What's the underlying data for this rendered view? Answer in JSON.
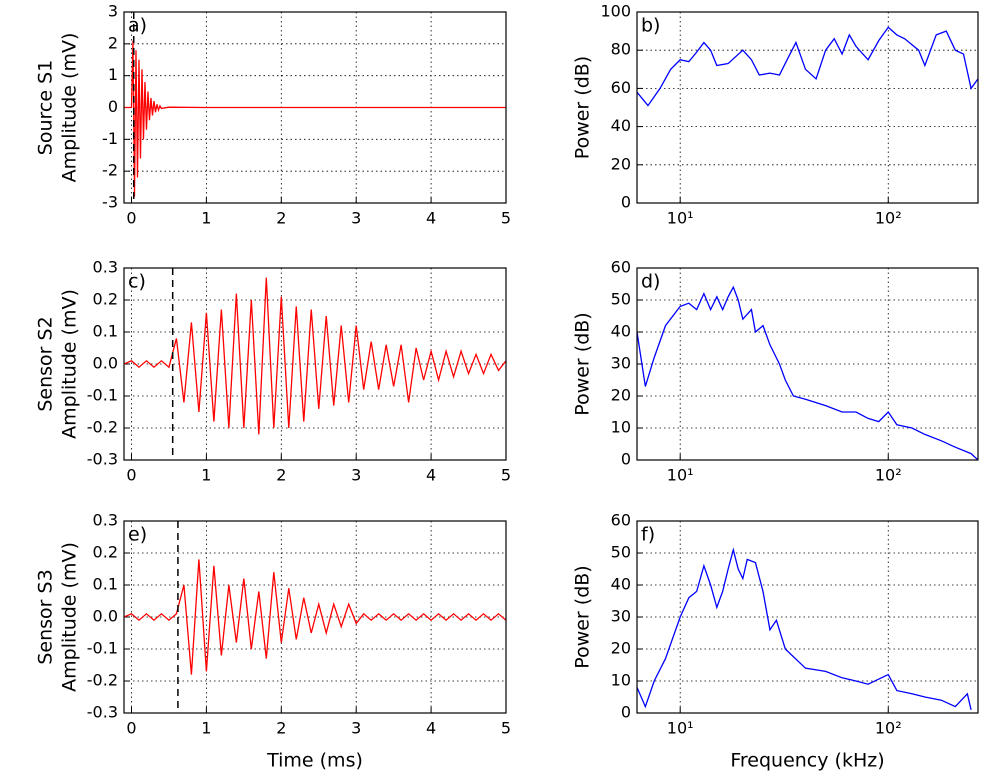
{
  "chart_data": [
    {
      "type": "line",
      "label": "a)",
      "ylabel": [
        "Source S1",
        "Amplitude (mV)"
      ],
      "xlim": [
        -0.1,
        5
      ],
      "ylim": [
        -3,
        3
      ],
      "xticks": [
        0,
        1,
        2,
        3,
        4,
        5
      ],
      "yticks": [
        -3,
        -2,
        -1,
        0,
        1,
        2,
        3
      ],
      "grid": true,
      "vline": 0.03,
      "x": [
        -0.1,
        0,
        0.02,
        0.04,
        0.06,
        0.08,
        0.1,
        0.12,
        0.14,
        0.16,
        0.18,
        0.2,
        0.22,
        0.24,
        0.26,
        0.28,
        0.3,
        0.32,
        0.34,
        0.36,
        0.38,
        0.4,
        0.5,
        1,
        1.5,
        2,
        2.5,
        3,
        3.5,
        4,
        4.5,
        5
      ],
      "series": [
        {
          "color": "#ff0000",
          "values": [
            0,
            0,
            2.1,
            -2.8,
            1.8,
            -2.2,
            1.5,
            -1.6,
            1.2,
            -1.0,
            0.8,
            -0.7,
            0.5,
            -0.4,
            0.3,
            -0.25,
            0.2,
            -0.15,
            0.1,
            -0.08,
            0.05,
            -0.03,
            0.01,
            0,
            0,
            0,
            0,
            0,
            0,
            0,
            0,
            0
          ]
        }
      ]
    },
    {
      "type": "line",
      "label": "b)",
      "ylabel": [
        "Power (dB)"
      ],
      "xscale": "log",
      "xlim": [
        6.2,
        270
      ],
      "ylim": [
        0,
        100
      ],
      "xticks": [
        {
          "value": 10,
          "label": "10¹"
        },
        {
          "value": 100,
          "label": "10²"
        }
      ],
      "yticks": [
        0,
        20,
        40,
        60,
        80,
        100
      ],
      "grid": true,
      "x": [
        6.2,
        7,
        8,
        9,
        10,
        11,
        12,
        13,
        14,
        15,
        17,
        20,
        22,
        24,
        27,
        30,
        33,
        36,
        40,
        45,
        50,
        55,
        60,
        65,
        70,
        80,
        90,
        100,
        110,
        120,
        140,
        150,
        170,
        190,
        210,
        230,
        250,
        270
      ],
      "series": [
        {
          "color": "#0000ff",
          "values": [
            58,
            51,
            60,
            70,
            75,
            74,
            79,
            84,
            80,
            72,
            73,
            80,
            75,
            67,
            68,
            67,
            76,
            84,
            70,
            65,
            80,
            86,
            78,
            88,
            82,
            75,
            85,
            92,
            88,
            86,
            80,
            72,
            88,
            90,
            80,
            78,
            60,
            65
          ]
        }
      ]
    },
    {
      "type": "line",
      "label": "c)",
      "ylabel": [
        "Sensor S2",
        "Amplitude (mV)"
      ],
      "xlim": [
        -0.1,
        5
      ],
      "ylim": [
        -0.3,
        0.3
      ],
      "xticks": [
        0,
        1,
        2,
        3,
        4,
        5
      ],
      "yticks": [
        -0.3,
        -0.2,
        -0.1,
        {
          "value": 0,
          "label": "0.0"
        },
        0.1,
        0.2,
        0.3
      ],
      "grid": true,
      "vline": 0.55,
      "x": [
        -0.1,
        0,
        0.1,
        0.2,
        0.3,
        0.4,
        0.5,
        0.6,
        0.7,
        0.8,
        0.9,
        1.0,
        1.1,
        1.2,
        1.3,
        1.4,
        1.5,
        1.6,
        1.7,
        1.8,
        1.9,
        2.0,
        2.1,
        2.2,
        2.3,
        2.4,
        2.5,
        2.6,
        2.7,
        2.8,
        2.9,
        3.0,
        3.1,
        3.2,
        3.3,
        3.4,
        3.5,
        3.6,
        3.7,
        3.8,
        3.9,
        4.0,
        4.1,
        4.2,
        4.3,
        4.4,
        4.5,
        4.6,
        4.7,
        4.8,
        4.9,
        5.0
      ],
      "series": [
        {
          "color": "#ff0000",
          "values": [
            0,
            0.01,
            -0.01,
            0.01,
            -0.01,
            0.01,
            -0.01,
            0.08,
            -0.12,
            0.13,
            -0.15,
            0.16,
            -0.18,
            0.17,
            -0.2,
            0.22,
            -0.2,
            0.2,
            -0.22,
            0.27,
            -0.2,
            0.21,
            -0.2,
            0.18,
            -0.18,
            0.17,
            -0.14,
            0.15,
            -0.13,
            0.12,
            -0.12,
            0.12,
            -0.08,
            0.07,
            -0.08,
            0.06,
            -0.07,
            0.06,
            -0.12,
            0.05,
            -0.05,
            0.04,
            -0.05,
            0.04,
            -0.04,
            0.04,
            -0.03,
            0.03,
            -0.03,
            0.03,
            -0.02,
            0.01
          ]
        }
      ]
    },
    {
      "type": "line",
      "label": "d)",
      "ylabel": [
        "Power (dB)"
      ],
      "xscale": "log",
      "xlim": [
        6.2,
        270
      ],
      "ylim": [
        0,
        60
      ],
      "xticks": [
        {
          "value": 10,
          "label": "10¹"
        },
        {
          "value": 100,
          "label": "10²"
        }
      ],
      "yticks": [
        0,
        10,
        20,
        30,
        40,
        50,
        60
      ],
      "grid": true,
      "x": [
        6.2,
        6.8,
        7.5,
        8.5,
        10,
        11,
        12,
        13,
        14,
        15,
        16,
        17,
        18,
        19,
        20,
        22,
        23,
        25,
        27,
        30,
        32,
        35,
        40,
        50,
        60,
        70,
        80,
        90,
        100,
        110,
        130,
        150,
        180,
        210,
        250,
        270
      ],
      "series": [
        {
          "color": "#0000ff",
          "values": [
            40,
            23,
            32,
            42,
            48,
            49,
            47,
            52,
            47,
            51,
            47,
            51,
            54,
            50,
            44,
            47,
            40,
            42,
            36,
            30,
            25,
            20,
            19,
            17,
            15,
            15,
            13,
            12,
            15,
            11,
            10,
            8,
            6,
            4,
            2,
            0
          ]
        }
      ]
    },
    {
      "type": "line",
      "label": "e)",
      "ylabel": [
        "Sensor S3",
        "Amplitude (mV)"
      ],
      "xlabel": "Time (ms)",
      "xlim": [
        -0.1,
        5
      ],
      "ylim": [
        -0.3,
        0.3
      ],
      "xticks": [
        0,
        1,
        2,
        3,
        4,
        5
      ],
      "yticks": [
        -0.3,
        -0.2,
        -0.1,
        {
          "value": 0,
          "label": "0.0"
        },
        0.1,
        0.2,
        0.3
      ],
      "grid": true,
      "vline": 0.62,
      "x": [
        -0.1,
        0,
        0.1,
        0.2,
        0.3,
        0.4,
        0.5,
        0.6,
        0.7,
        0.8,
        0.9,
        1.0,
        1.1,
        1.2,
        1.3,
        1.4,
        1.5,
        1.6,
        1.7,
        1.8,
        1.9,
        2.0,
        2.1,
        2.2,
        2.3,
        2.4,
        2.5,
        2.6,
        2.7,
        2.8,
        2.9,
        3.0,
        3.1,
        3.2,
        3.3,
        3.4,
        3.5,
        3.6,
        3.7,
        3.8,
        3.9,
        4.0,
        4.1,
        4.2,
        4.3,
        4.4,
        4.5,
        4.6,
        4.7,
        4.8,
        4.9,
        5.0
      ],
      "series": [
        {
          "color": "#ff0000",
          "values": [
            0,
            0.01,
            -0.01,
            0.01,
            -0.01,
            0.01,
            -0.01,
            0.01,
            0.1,
            -0.18,
            0.18,
            -0.17,
            0.16,
            -0.12,
            0.1,
            -0.08,
            0.12,
            -0.1,
            0.08,
            -0.13,
            0.14,
            -0.08,
            0.09,
            -0.07,
            0.06,
            -0.05,
            0.04,
            -0.05,
            0.04,
            -0.03,
            0.04,
            -0.02,
            0.01,
            -0.01,
            0.01,
            -0.01,
            0.01,
            -0.01,
            0.01,
            -0.01,
            0.01,
            -0.01,
            0.01,
            -0.01,
            0.01,
            -0.01,
            0.01,
            -0.01,
            0.01,
            -0.01,
            0.01,
            -0.01
          ]
        }
      ]
    },
    {
      "type": "line",
      "label": "f)",
      "ylabel": [
        "Power (dB)"
      ],
      "xlabel": "Frequency (kHz)",
      "xscale": "log",
      "xlim": [
        6.2,
        270
      ],
      "ylim": [
        0,
        60
      ],
      "xticks": [
        {
          "value": 10,
          "label": "10¹"
        },
        {
          "value": 100,
          "label": "10²"
        }
      ],
      "yticks": [
        0,
        10,
        20,
        30,
        40,
        50,
        60
      ],
      "grid": true,
      "x": [
        6.2,
        6.8,
        7.5,
        8.5,
        10,
        11,
        12,
        13,
        14,
        15,
        16,
        17,
        18,
        19,
        20,
        21,
        23,
        25,
        27,
        29,
        32,
        40,
        50,
        60,
        70,
        80,
        100,
        110,
        130,
        150,
        180,
        210,
        240,
        250
      ],
      "series": [
        {
          "color": "#0000ff",
          "values": [
            8,
            2,
            10,
            17,
            30,
            36,
            38,
            46,
            40,
            33,
            38,
            45,
            51,
            45,
            42,
            48,
            47,
            38,
            26,
            29,
            20,
            14,
            13,
            11,
            10,
            9,
            12,
            7,
            6,
            5,
            4,
            2,
            6,
            1
          ]
        }
      ]
    }
  ]
}
